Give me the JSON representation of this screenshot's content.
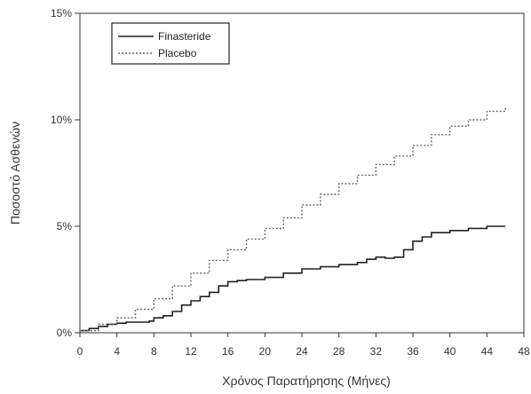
{
  "chart_data": {
    "type": "line",
    "xlabel": "Χρόνος Παρατήρησης (Μήνες)",
    "ylabel": "Ποσοστό Ασθενών",
    "xlim": [
      0,
      48
    ],
    "ylim": [
      0,
      15
    ],
    "x_ticks": [
      0,
      4,
      8,
      12,
      16,
      20,
      24,
      28,
      32,
      36,
      40,
      44,
      48
    ],
    "y_ticks": [
      {
        "value": 0,
        "label": "0%"
      },
      {
        "value": 5,
        "label": "5%"
      },
      {
        "value": 10,
        "label": "10%"
      },
      {
        "value": 15,
        "label": "15%"
      }
    ],
    "grid": false,
    "legend_position": "top-left",
    "series": [
      {
        "name": "Finasteride",
        "style": "step",
        "color": "#222222",
        "x": [
          0,
          1,
          2,
          3,
          4,
          5,
          6,
          7,
          7.5,
          8,
          9,
          10,
          11,
          12,
          13,
          14,
          15,
          16,
          17,
          18,
          20,
          22,
          24,
          26,
          28,
          30,
          31,
          32,
          33,
          34,
          35,
          36,
          37,
          38,
          40,
          42,
          44,
          46
        ],
        "y": [
          0.1,
          0.2,
          0.3,
          0.4,
          0.45,
          0.5,
          0.5,
          0.5,
          0.55,
          0.7,
          0.8,
          1.0,
          1.3,
          1.5,
          1.7,
          1.9,
          2.2,
          2.4,
          2.45,
          2.5,
          2.6,
          2.8,
          3.0,
          3.1,
          3.2,
          3.3,
          3.45,
          3.55,
          3.5,
          3.55,
          3.9,
          4.3,
          4.5,
          4.7,
          4.8,
          4.9,
          5.0,
          5.0
        ]
      },
      {
        "name": "Placebo",
        "style": "step",
        "color": "#666666",
        "x": [
          0,
          2,
          4,
          6,
          8,
          10,
          12,
          14,
          16,
          18,
          20,
          22,
          24,
          26,
          28,
          30,
          32,
          34,
          36,
          38,
          40,
          42,
          44,
          46
        ],
        "y": [
          0.1,
          0.4,
          0.7,
          1.1,
          1.6,
          2.2,
          2.8,
          3.4,
          3.9,
          4.4,
          4.9,
          5.4,
          6.0,
          6.5,
          7.0,
          7.4,
          7.9,
          8.3,
          8.8,
          9.3,
          9.7,
          10.0,
          10.4,
          10.6
        ]
      }
    ]
  }
}
